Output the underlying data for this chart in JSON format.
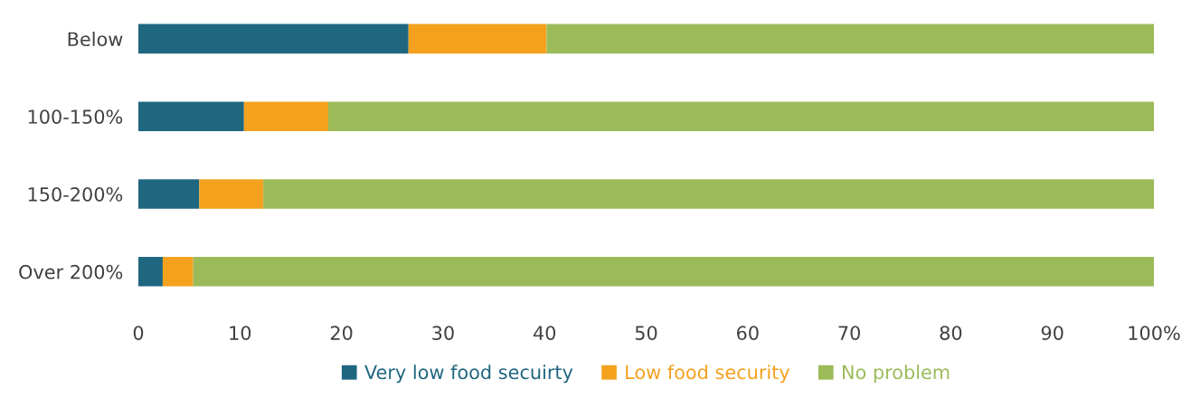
{
  "chart_data": {
    "type": "bar",
    "orientation": "horizontal",
    "stacked": true,
    "categories": [
      "Below",
      "100-150%",
      "150-200%",
      "Over 200%"
    ],
    "series": [
      {
        "name": "Very low food secuirty",
        "color": "#1f6680",
        "values": [
          26.6,
          10.4,
          6.0,
          2.4
        ]
      },
      {
        "name": "Low food security",
        "color": "#f4a11e",
        "values": [
          13.6,
          8.3,
          6.3,
          3.0
        ]
      },
      {
        "name": "No problem",
        "color": "#9bbb59",
        "values": [
          59.8,
          81.3,
          87.7,
          94.6
        ]
      }
    ],
    "xlim": [
      0,
      100
    ],
    "xticks": [
      0,
      10,
      20,
      30,
      40,
      50,
      60,
      70,
      80,
      90,
      {
        "value": 100,
        "label": "100%"
      }
    ],
    "grid": false,
    "legend": "bottom"
  }
}
